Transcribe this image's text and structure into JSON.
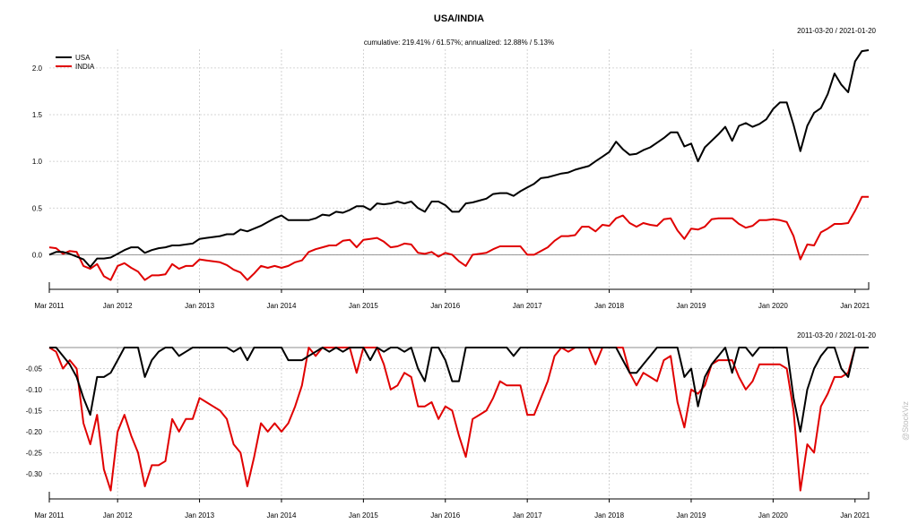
{
  "chart_data": [
    {
      "type": "line",
      "title": "USA/INDIA",
      "subtitle": "cumulative: 219.41% / 61.57%; annualized: 12.88% / 5.13%",
      "date_range": "2011-03-20 / 2021-01-20",
      "x_start": "Mar 2011",
      "x_end": "Jan 2021",
      "x_tick_labels": [
        "Mar 2011",
        "Jan 2012",
        "Jan 2013",
        "Jan 2014",
        "Jan 2015",
        "Jan 2016",
        "Jan 2017",
        "Jan 2018",
        "Jan 2019",
        "Jan 2020",
        "Jan 2021"
      ],
      "y_tick_labels": [
        "0.0",
        "0.5",
        "1.0",
        "1.5",
        "2.0"
      ],
      "ylim": [
        -0.37,
        2.2
      ],
      "grid": true,
      "legend_position": "top-left",
      "series": [
        {
          "name": "USA",
          "color": "#000000",
          "values": [
            0.0,
            0.03,
            0.03,
            0.01,
            -0.02,
            -0.05,
            -0.13,
            -0.04,
            -0.04,
            -0.03,
            0.01,
            0.05,
            0.08,
            0.08,
            0.02,
            0.05,
            0.07,
            0.08,
            0.1,
            0.1,
            0.11,
            0.12,
            0.17,
            0.18,
            0.19,
            0.2,
            0.22,
            0.22,
            0.27,
            0.25,
            0.28,
            0.31,
            0.35,
            0.39,
            0.42,
            0.37,
            0.37,
            0.37,
            0.37,
            0.39,
            0.43,
            0.42,
            0.46,
            0.45,
            0.48,
            0.52,
            0.52,
            0.48,
            0.55,
            0.54,
            0.55,
            0.57,
            0.55,
            0.57,
            0.5,
            0.46,
            0.57,
            0.57,
            0.53,
            0.46,
            0.46,
            0.55,
            0.56,
            0.58,
            0.6,
            0.65,
            0.66,
            0.66,
            0.63,
            0.68,
            0.72,
            0.76,
            0.82,
            0.83,
            0.85,
            0.87,
            0.88,
            0.91,
            0.93,
            0.95,
            1.0,
            1.05,
            1.1,
            1.21,
            1.13,
            1.07,
            1.08,
            1.12,
            1.15,
            1.2,
            1.25,
            1.31,
            1.31,
            1.16,
            1.19,
            1.0,
            1.15,
            1.22,
            1.29,
            1.37,
            1.22,
            1.38,
            1.41,
            1.37,
            1.4,
            1.45,
            1.56,
            1.63,
            1.63,
            1.39,
            1.11,
            1.38,
            1.52,
            1.57,
            1.72,
            1.94,
            1.82,
            1.74,
            2.07,
            2.18,
            2.19
          ]
        },
        {
          "name": "INDIA",
          "color": "#e00000",
          "values": [
            0.08,
            0.07,
            0.01,
            0.04,
            0.03,
            -0.12,
            -0.15,
            -0.1,
            -0.23,
            -0.27,
            -0.12,
            -0.09,
            -0.14,
            -0.18,
            -0.27,
            -0.22,
            -0.22,
            -0.21,
            -0.1,
            -0.15,
            -0.12,
            -0.12,
            -0.05,
            -0.06,
            -0.07,
            -0.08,
            -0.11,
            -0.16,
            -0.19,
            -0.27,
            -0.2,
            -0.12,
            -0.14,
            -0.12,
            -0.14,
            -0.12,
            -0.08,
            -0.06,
            0.03,
            0.06,
            0.08,
            0.1,
            0.1,
            0.15,
            0.16,
            0.08,
            0.16,
            0.17,
            0.18,
            0.14,
            0.08,
            0.09,
            0.12,
            0.11,
            0.02,
            0.01,
            0.03,
            -0.02,
            0.02,
            0.0,
            -0.07,
            -0.12,
            0.0,
            0.01,
            0.02,
            0.06,
            0.09,
            0.09,
            0.09,
            0.09,
            0.0,
            0.0,
            0.04,
            0.08,
            0.15,
            0.2,
            0.2,
            0.21,
            0.3,
            0.3,
            0.25,
            0.32,
            0.31,
            0.39,
            0.42,
            0.34,
            0.3,
            0.34,
            0.32,
            0.31,
            0.38,
            0.39,
            0.26,
            0.17,
            0.28,
            0.27,
            0.3,
            0.38,
            0.39,
            0.39,
            0.39,
            0.33,
            0.29,
            0.31,
            0.37,
            0.37,
            0.38,
            0.37,
            0.35,
            0.2,
            -0.05,
            0.11,
            0.1,
            0.24,
            0.28,
            0.33,
            0.33,
            0.34,
            0.47,
            0.62,
            0.62
          ]
        }
      ]
    },
    {
      "type": "line",
      "date_range": "2011-03-20 / 2021-01-20",
      "x_start": "Mar 2011",
      "x_end": "Jan 2021",
      "x_tick_labels": [
        "Mar 2011",
        "Jan 2012",
        "Jan 2013",
        "Jan 2014",
        "Jan 2015",
        "Jan 2016",
        "Jan 2017",
        "Jan 2018",
        "Jan 2019",
        "Jan 2020",
        "Jan 2021"
      ],
      "y_tick_labels": [
        "-0.05",
        "-0.10",
        "-0.15",
        "-0.20",
        "-0.25",
        "-0.30"
      ],
      "ylim": [
        -0.36,
        0.0
      ],
      "grid": true,
      "series": [
        {
          "name": "USA",
          "color": "#000000",
          "values": [
            0.0,
            0.0,
            -0.02,
            -0.04,
            -0.07,
            -0.12,
            -0.16,
            -0.07,
            -0.07,
            -0.06,
            -0.03,
            0.0,
            0.0,
            0.0,
            -0.07,
            -0.03,
            -0.01,
            0.0,
            0.0,
            -0.02,
            -0.01,
            0.0,
            0.0,
            0.0,
            0.0,
            0.0,
            0.0,
            -0.01,
            0.0,
            -0.03,
            0.0,
            0.0,
            0.0,
            0.0,
            0.0,
            -0.03,
            -0.03,
            -0.03,
            -0.02,
            -0.01,
            0.0,
            -0.01,
            0.0,
            -0.01,
            0.0,
            0.0,
            0.0,
            -0.03,
            0.0,
            -0.01,
            0.0,
            0.0,
            -0.01,
            0.0,
            -0.05,
            -0.08,
            0.0,
            0.0,
            -0.03,
            -0.08,
            -0.08,
            0.0,
            0.0,
            0.0,
            0.0,
            0.0,
            0.0,
            0.0,
            -0.02,
            0.0,
            0.0,
            0.0,
            0.0,
            0.0,
            0.0,
            0.0,
            0.0,
            0.0,
            0.0,
            0.0,
            0.0,
            0.0,
            0.0,
            0.0,
            -0.03,
            -0.06,
            -0.06,
            -0.04,
            -0.02,
            0.0,
            0.0,
            0.0,
            0.0,
            -0.07,
            -0.05,
            -0.14,
            -0.07,
            -0.04,
            -0.02,
            0.0,
            -0.06,
            0.0,
            0.0,
            -0.02,
            0.0,
            0.0,
            0.0,
            0.0,
            0.0,
            -0.12,
            -0.2,
            -0.1,
            -0.05,
            -0.02,
            0.0,
            0.0,
            -0.05,
            -0.07,
            0.0,
            0.0,
            0.0
          ]
        },
        {
          "name": "INDIA",
          "color": "#e00000",
          "values": [
            0.0,
            -0.01,
            -0.05,
            -0.03,
            -0.05,
            -0.18,
            -0.23,
            -0.16,
            -0.29,
            -0.34,
            -0.2,
            -0.16,
            -0.21,
            -0.25,
            -0.33,
            -0.28,
            -0.28,
            -0.27,
            -0.17,
            -0.2,
            -0.17,
            -0.17,
            -0.12,
            -0.13,
            -0.14,
            -0.15,
            -0.17,
            -0.23,
            -0.25,
            -0.33,
            -0.26,
            -0.18,
            -0.2,
            -0.18,
            -0.2,
            -0.18,
            -0.14,
            -0.09,
            0.0,
            -0.02,
            0.0,
            0.0,
            0.0,
            0.0,
            0.0,
            -0.06,
            0.0,
            0.0,
            0.0,
            -0.04,
            -0.1,
            -0.09,
            -0.06,
            -0.07,
            -0.14,
            -0.14,
            -0.13,
            -0.17,
            -0.14,
            -0.15,
            -0.21,
            -0.26,
            -0.17,
            -0.16,
            -0.15,
            -0.12,
            -0.08,
            -0.09,
            -0.09,
            -0.09,
            -0.16,
            -0.16,
            -0.12,
            -0.08,
            -0.02,
            0.0,
            -0.01,
            0.0,
            0.0,
            0.0,
            -0.04,
            0.0,
            0.0,
            0.0,
            0.0,
            -0.06,
            -0.09,
            -0.06,
            -0.07,
            -0.08,
            -0.03,
            -0.02,
            -0.13,
            -0.19,
            -0.1,
            -0.11,
            -0.09,
            -0.04,
            -0.03,
            -0.03,
            -0.03,
            -0.07,
            -0.1,
            -0.08,
            -0.04,
            -0.04,
            -0.04,
            -0.04,
            -0.05,
            -0.15,
            -0.34,
            -0.23,
            -0.25,
            -0.14,
            -0.11,
            -0.07,
            -0.07,
            -0.06,
            0.0,
            0.0,
            0.0
          ]
        }
      ]
    }
  ],
  "watermark": "@StockViz"
}
